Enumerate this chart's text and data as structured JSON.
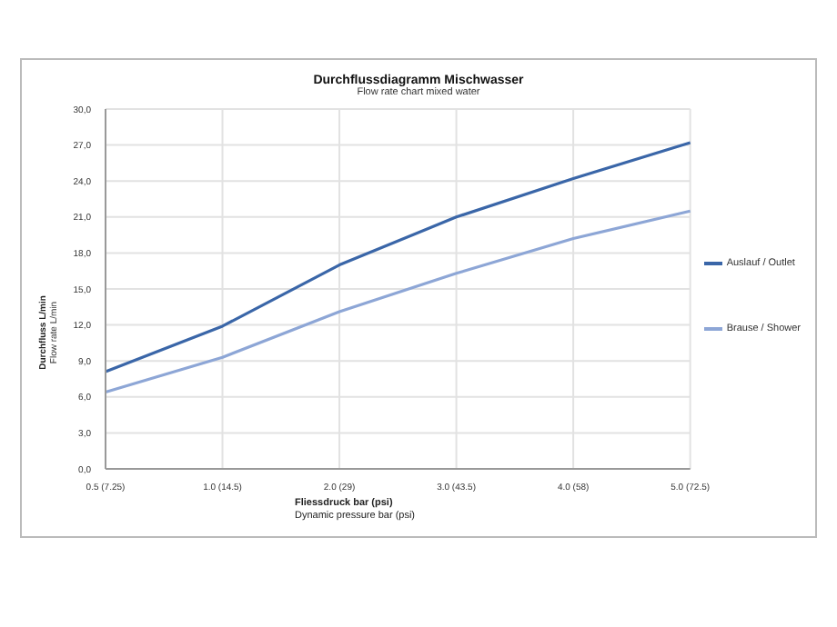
{
  "chart_data": {
    "type": "line",
    "title": "Durchflussdiagramm Mischwasser",
    "subtitle": "Flow rate chart mixed water",
    "xlabel": "Fliessdruck bar (psi)\nDynamic pressure bar (psi)",
    "ylabel": "Durchfluss L/min\nFlow rate L/min",
    "categories": [
      "0.5 (7.25)",
      "1.0 (14.5)",
      "2.0 (29)",
      "3.0 (43.5)",
      "4.0 (58)",
      "5.0 (72.5)"
    ],
    "series": [
      {
        "name": "Auslauf / Outlet",
        "color": "#3a66a8",
        "values": [
          8.1,
          11.9,
          17.0,
          21.0,
          24.2,
          27.2
        ]
      },
      {
        "name": "Brause / Shower",
        "color": "#8da6d6",
        "values": [
          6.4,
          9.3,
          13.1,
          16.3,
          19.2,
          21.5
        ]
      }
    ],
    "ylim": [
      0,
      30
    ],
    "yticks": [
      {
        "value": 0,
        "label": "0,0"
      },
      {
        "value": 3,
        "label": "3,0"
      },
      {
        "value": 6,
        "label": "6,0"
      },
      {
        "value": 9,
        "label": "9,0"
      },
      {
        "value": 12,
        "label": "12,0"
      },
      {
        "value": 15,
        "label": "15,0"
      },
      {
        "value": 18,
        "label": "18,0"
      },
      {
        "value": 21,
        "label": "21,0"
      },
      {
        "value": 24,
        "label": "24,0"
      },
      {
        "value": 27,
        "label": "27,0"
      },
      {
        "value": 30,
        "label": "30,0"
      }
    ],
    "grid": true,
    "legend": "right",
    "marker": "none",
    "line_style": "solid"
  }
}
